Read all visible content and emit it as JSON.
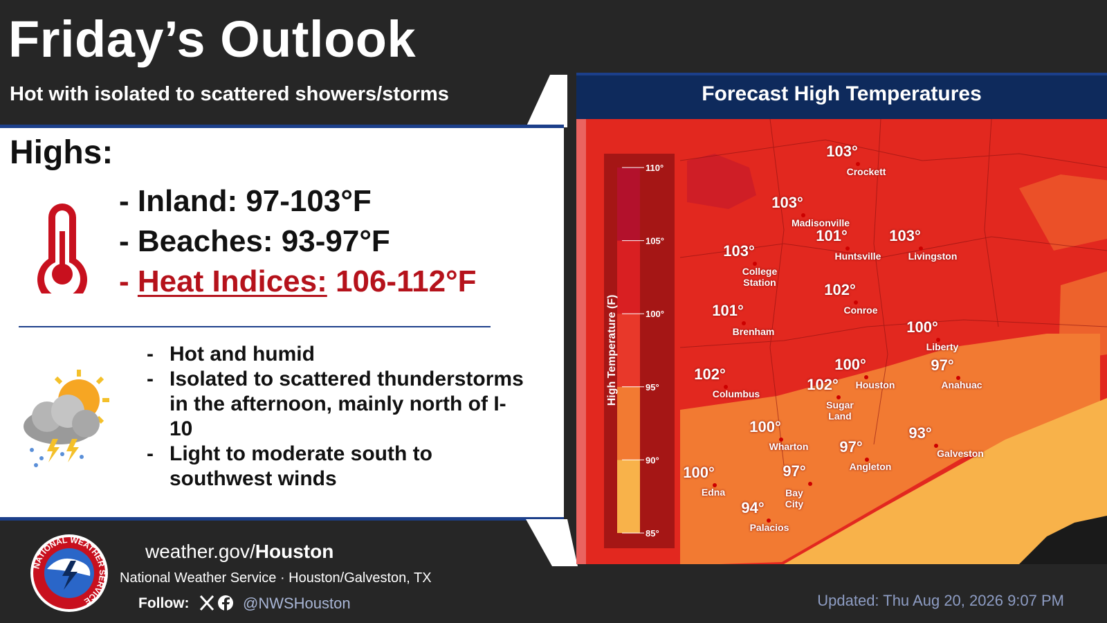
{
  "header": {
    "title": "Friday’s Outlook",
    "subtitle": "Hot with isolated to scattered showers/storms"
  },
  "highs": {
    "heading": "Highs:",
    "items": [
      {
        "dash": "-",
        "label": "Inland:",
        "value": "97-103°F"
      },
      {
        "dash": "-",
        "label": "Beaches:",
        "value": "93-97°F"
      },
      {
        "dash": "-",
        "label": "Heat Indices:",
        "value": "106-112°F"
      }
    ]
  },
  "details": [
    {
      "dash": "-",
      "text": "Hot and humid"
    },
    {
      "dash": "-",
      "text": "Isolated to scattered thunderstorms in the afternoon, mainly north of I-10"
    },
    {
      "dash": "-",
      "text": "Light to moderate south to southwest winds"
    }
  ],
  "map": {
    "title": "Forecast High Temperatures",
    "legend": {
      "title": "High Temperature (F)",
      "ticks": [
        {
          "value": 110,
          "label": "110°"
        },
        {
          "value": 105,
          "label": "105°"
        },
        {
          "value": 100,
          "label": "100°"
        },
        {
          "value": 95,
          "label": "95°"
        },
        {
          "value": 90,
          "label": "90°"
        },
        {
          "value": 85,
          "label": "85°"
        }
      ],
      "colors": [
        "#b3112c",
        "#d91f22",
        "#e8382a",
        "#f27a32",
        "#f8b24a"
      ]
    },
    "cities": [
      {
        "name": "Crockett",
        "temp": "103°"
      },
      {
        "name": "Madisonville",
        "temp": "103°"
      },
      {
        "name": "Huntsville",
        "temp": "101°"
      },
      {
        "name": "Livingston",
        "temp": "103°"
      },
      {
        "name": "College Station",
        "temp": "103°"
      },
      {
        "name": "Conroe",
        "temp": "102°"
      },
      {
        "name": "Brenham",
        "temp": "101°"
      },
      {
        "name": "Liberty",
        "temp": "100°"
      },
      {
        "name": "Columbus",
        "temp": "102°"
      },
      {
        "name": "Houston",
        "temp": "100°"
      },
      {
        "name": "Anahuac",
        "temp": "97°"
      },
      {
        "name": "Sugar Land",
        "temp": "102°"
      },
      {
        "name": "Wharton",
        "temp": "100°"
      },
      {
        "name": "Galveston",
        "temp": "93°"
      },
      {
        "name": "Angleton",
        "temp": "97°"
      },
      {
        "name": "Edna",
        "temp": "100°"
      },
      {
        "name": "Bay City",
        "temp": "97°"
      },
      {
        "name": "Palacios",
        "temp": "94°"
      }
    ]
  },
  "footer": {
    "logo_text": "NATIONAL WEATHER SERVICE",
    "site_prefix": "weather.gov/",
    "site_bold": "Houston",
    "office": "National Weather Service · Houston/Galveston, TX",
    "follow": "Follow:",
    "handle": "@NWSHouston",
    "updated": "Updated: Thu Aug 20, 2026 9:07 PM"
  }
}
